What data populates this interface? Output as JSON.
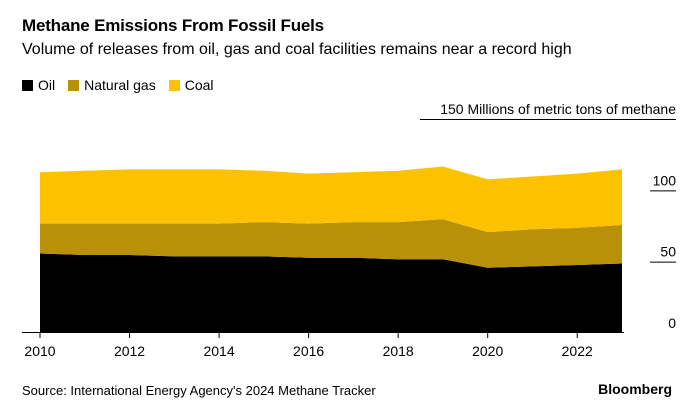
{
  "chart_data": {
    "type": "area",
    "stacked": true,
    "title": "Methane Emissions From Fossil Fuels",
    "subtitle": "Volume of releases from oil, gas and coal facilities remains near a record high",
    "ylabel": "Millions of metric tons of methane",
    "ylim": [
      0,
      150
    ],
    "yticks": [
      0,
      50,
      100,
      150
    ],
    "xticks": [
      2010,
      2012,
      2014,
      2016,
      2018,
      2020,
      2022
    ],
    "xlim": [
      2010,
      2023
    ],
    "grid": false,
    "legend_position": "top-left",
    "x": [
      2010,
      2011,
      2012,
      2013,
      2014,
      2015,
      2016,
      2017,
      2018,
      2019,
      2020,
      2021,
      2022,
      2023
    ],
    "series": [
      {
        "name": "Oil",
        "color": "#000000",
        "values": [
          55,
          54,
          54,
          53,
          53,
          53,
          52,
          52,
          51,
          51,
          45,
          46,
          47,
          48
        ]
      },
      {
        "name": "Natural gas",
        "color": "#b8900a",
        "values": [
          21,
          22,
          22,
          23,
          23,
          24,
          24,
          25,
          26,
          28,
          25,
          26,
          26,
          27
        ]
      },
      {
        "name": "Coal",
        "color": "#fcc200",
        "values": [
          36,
          37,
          38,
          38,
          38,
          36,
          35,
          35,
          36,
          37,
          37,
          37,
          38,
          39
        ]
      }
    ]
  },
  "footer": {
    "source": "Source: International Energy Agency's 2024 Methane Tracker",
    "brand": "Bloomberg"
  }
}
